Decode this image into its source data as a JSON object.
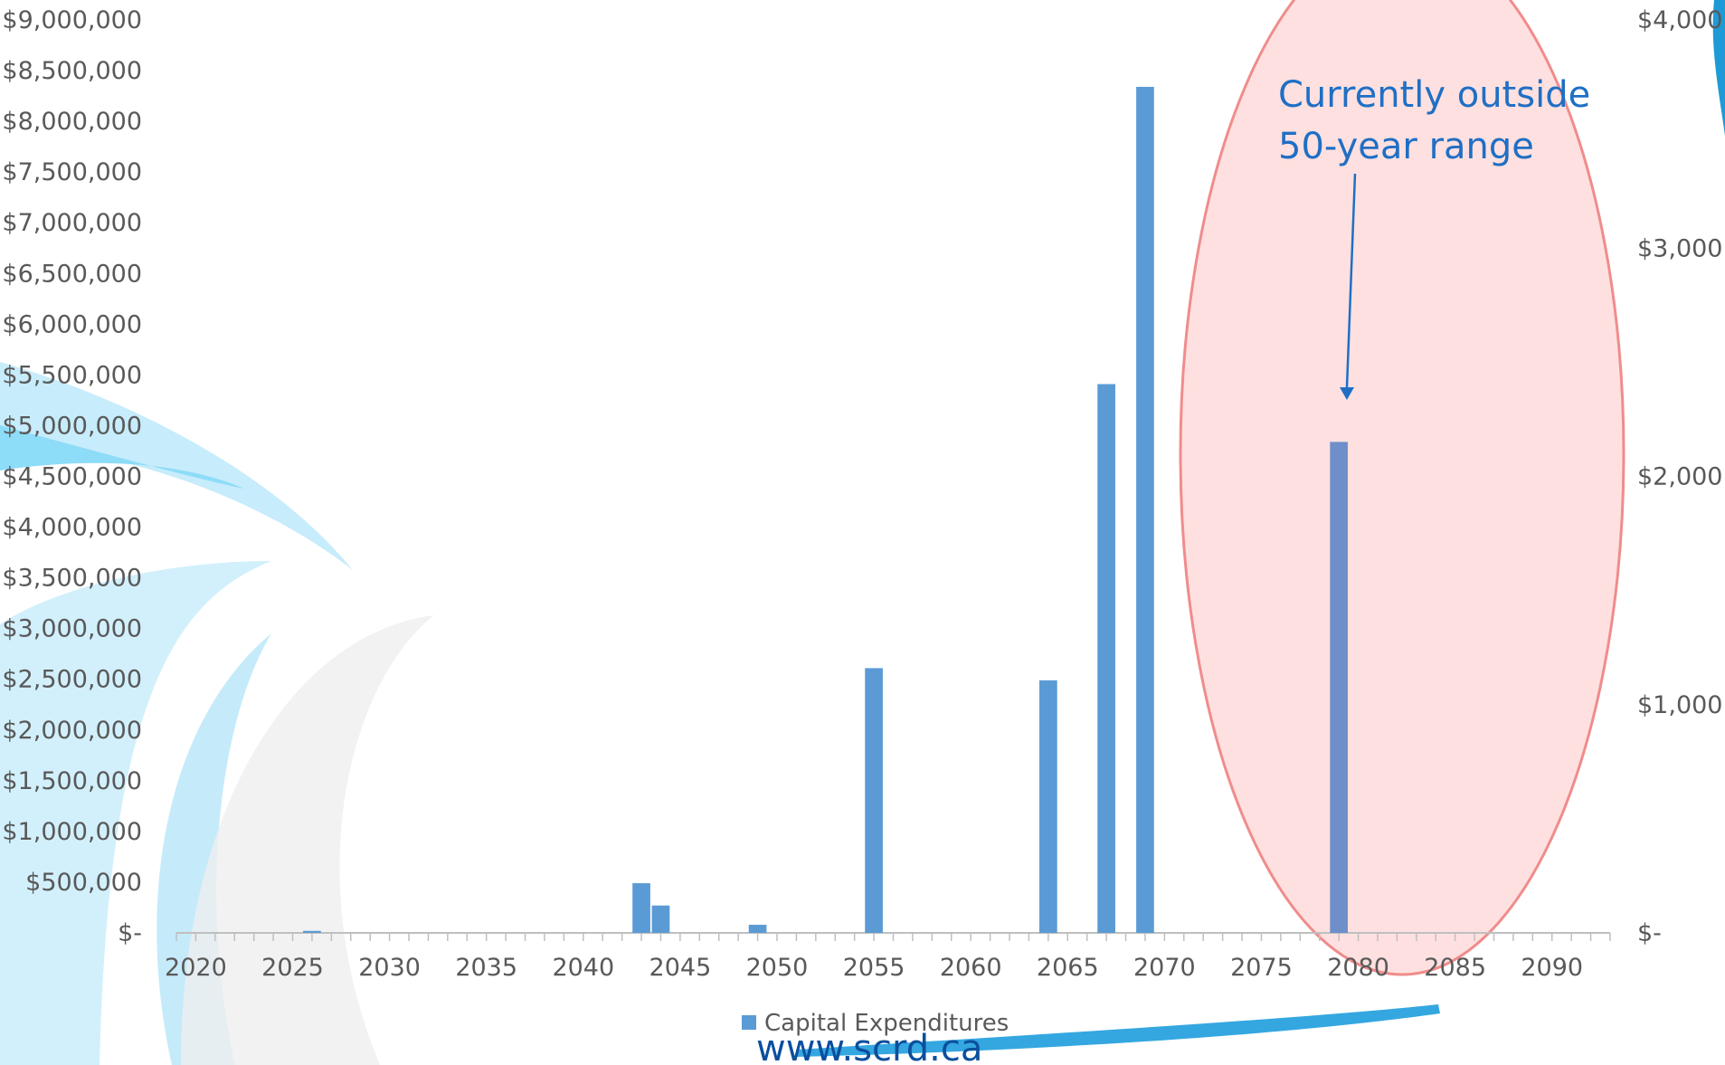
{
  "chart_data": {
    "type": "bar",
    "series": [
      {
        "name": "Capital Expenditures",
        "color": "#5b9bd5",
        "points": [
          {
            "x": 2026,
            "y": 20000
          },
          {
            "x": 2043,
            "y": 490000
          },
          {
            "x": 2044,
            "y": 270000
          },
          {
            "x": 2049,
            "y": 80000
          },
          {
            "x": 2055,
            "y": 2610000
          },
          {
            "x": 2064,
            "y": 2490000
          },
          {
            "x": 2067,
            "y": 5410000
          },
          {
            "x": 2069,
            "y": 8340000
          },
          {
            "x": 2079,
            "y": 4840000
          }
        ]
      }
    ],
    "x_ticks": [
      "2020",
      "2025",
      "2030",
      "2035",
      "2040",
      "2045",
      "2050",
      "2055",
      "2060",
      "2065",
      "2070",
      "2075",
      "2080",
      "2085",
      "2090"
    ],
    "xlim": [
      2019,
      2093
    ],
    "ylim": [
      0,
      9000000
    ],
    "y_ticks_left": [
      "$-",
      "$500,000",
      "$1,000,000",
      "$1,500,000",
      "$2,000,000",
      "$2,500,000",
      "$3,000,000",
      "$3,500,000",
      "$4,000,000",
      "$4,500,000",
      "$5,000,000",
      "$5,500,000",
      "$6,000,000",
      "$6,500,000",
      "$7,000,000",
      "$7,500,000",
      "$8,000,000",
      "$8,500,000",
      "$9,000,000"
    ],
    "y2lim": [
      0,
      4000
    ],
    "y_ticks_right": [
      "$-",
      "$1,000",
      "$2,000",
      "$3,000",
      "$4,000"
    ],
    "legend": {
      "label": "Capital Expenditures",
      "position": "bottom"
    },
    "grid": false,
    "annotation": {
      "lines": [
        "Currently outside",
        "50-year range"
      ],
      "target_x": 2079,
      "highlight_color": "#ffd6d6",
      "highlight_border": "#f08c8c"
    }
  },
  "footer": {
    "url": "www.scrd.ca"
  },
  "colors": {
    "accent": "#1f6fc5",
    "axis": "#bfbfbf",
    "tick_text": "#595959",
    "swoosh": "#7fd3f7"
  }
}
